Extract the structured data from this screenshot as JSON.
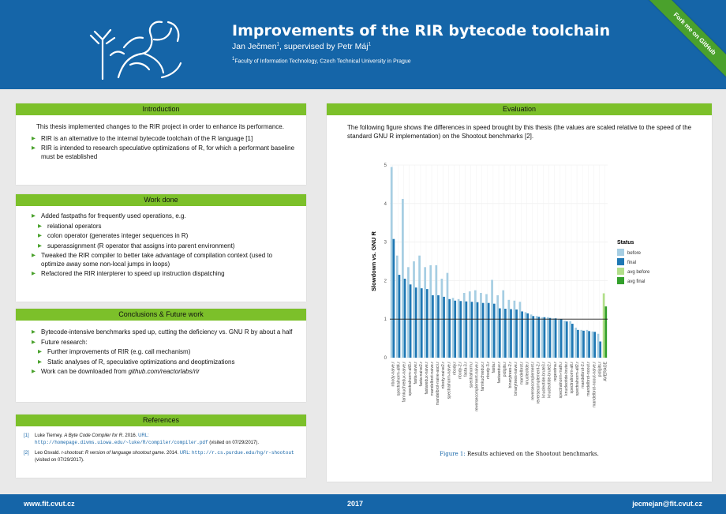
{
  "header": {
    "title": "Improvements of the RIR bytecode toolchain",
    "authors": "Jan Ječmen",
    "supervisor": ", supervised by Petr Máj",
    "sup1": "1",
    "sup2": "1",
    "affiliation_sup": "1",
    "affiliation": "Faculty of Information Technology, Czech Technical University in Prague",
    "ribbon": "Fork me on GitHub"
  },
  "intro": {
    "title": "Introduction",
    "lead": "This thesis implemented changes to the RIR project in order to enhance its performance.",
    "items": [
      "RIR is an alternative to the internal bytecode toolchain of the R language [1]",
      "RIR is intended to research speculative optimizations of R, for which a performant baseline must be established"
    ]
  },
  "work": {
    "title": "Work done",
    "item1": "Added fastpaths for frequently used operations, e.g.",
    "sub": [
      "relational operators",
      "colon operator (generates integer sequences in R)",
      "superassignment (R operator that assigns into parent environment)"
    ],
    "item2": "Tweaked the RIR compiler to better take advantage of compilation context (used to optimize away some non-local jumps in loops)",
    "item3": "Refactored the RIR interpterer to speed up instruction dispatching"
  },
  "conclusions": {
    "title": "Conclusions & Future work",
    "item1": "Bytecode-intensive benchmarks sped up, cutting the deficiency vs. GNU R by about a half",
    "item2": "Future research:",
    "sub": [
      "Further improvements of RIR (e.g. call mechanism)",
      "Static analyses of R, speculative optimizations and deoptimizations"
    ],
    "item3_pre": "Work can be downloaded from ",
    "item3_link": "github.com/reactorlabs/rir"
  },
  "references": {
    "title": "References",
    "r1_num": "[1]",
    "r1_author": "Luke Tierney. ",
    "r1_title": "A Byte Code Compiler for R",
    "r1_rest": ". 2016. ",
    "r1_url_label": "URL: ",
    "r1_url": "http://homepage.divms.uiowa.edu/~luke/R/compiler/compiler.pdf",
    "r1_visited": " (visited on 07/29/2017).",
    "r2_num": "[2]",
    "r2_author": "Leo Osvald. ",
    "r2_title": "r-shootout: R version of language shootout game",
    "r2_rest": ". 2014. ",
    "r2_url_label": "URL: ",
    "r2_url": "http://r.cs.purdue.edu/hg/r-shootout",
    "r2_visited": " (visited on 07/29/2017)."
  },
  "evaluation": {
    "title": "Evaluation",
    "text": "The following figure shows the differences in speed brought by this thesis (the values are scaled relative to the speed of the standard GNU R implementation) on the Shootout benchmarks [2].",
    "caption_label": "Figure 1:",
    "caption": " Results achieved on the Shootout benchmarks."
  },
  "footer": {
    "left": "www.fit.cvut.cz",
    "center": "2017",
    "right": "jecmejan@fit.cvut.cz"
  },
  "colors": {
    "header": "#1565a8",
    "accent": "#7cc02a",
    "before": "#a6cee3",
    "final": "#1f78b4",
    "avg_before": "#b2df8a",
    "avg_final": "#33a02c"
  },
  "chart_data": {
    "type": "bar",
    "ylabel": "Slowdown vs. GNU R",
    "ylim": [
      0,
      5
    ],
    "yticks": [
      0,
      1,
      2,
      3,
      4,
      5
    ],
    "reference_line": 1,
    "legend_title": "Status",
    "legend_position": "right",
    "legend": [
      "before",
      "final",
      "avg before",
      "avg final"
    ],
    "categories": [
      "nbody-naive.r",
      "spectralnorm-alt4.r",
      "fannkuchredux-naive.r",
      "spectralnorm-alt3.r",
      "fasta-naive.r",
      "fasta-naive2.r",
      "fastaredux-naive.r",
      "mandelbrot-naive.r",
      "mandelbrot-naive-ascii.r",
      "nbody-naive2.r",
      "spectralnorm-naive.r",
      "nbody.r",
      "nbody-2.r",
      "fasta-3.r",
      "spectralnorm.r",
      "reversecomplement-naive.r",
      "fannkuchredux.r",
      "nbody-3.r",
      "fasta.r",
      "fastaredux.r",
      "pidigits.r",
      "binarytrees-2.r",
      "binarytrees-naive.r",
      "mandelbrot.r",
      "knucleotide.r",
      "reversecomplement.r",
      "reversecomplement-2.r",
      "knucleotide-brute3.r",
      "knucleotide-brute2.r",
      "regexdna.r",
      "spectralnorm-math.r",
      "knucleotide-brute.r",
      "spectralnorm-alt.r",
      "spectralnorm-alt2.r",
      "mandelbrot-2.r",
      "mandelbrot-noout.r",
      "mandelbrot-noout-naive.r",
      "pidigits.r",
      "AVERAGE"
    ],
    "series": [
      {
        "name": "before",
        "values": [
          4.95,
          2.65,
          4.12,
          2.35,
          2.5,
          2.65,
          2.35,
          2.4,
          2.4,
          2.05,
          2.2,
          1.55,
          1.52,
          1.68,
          1.72,
          1.75,
          1.68,
          1.65,
          2.02,
          1.62,
          1.75,
          1.5,
          1.48,
          1.45,
          1.18,
          1.12,
          1.08,
          1.05,
          1.05,
          1.02,
          1.0,
          0.96,
          0.95,
          0.78,
          0.72,
          0.72,
          0.68,
          0.62,
          0.0
        ]
      },
      {
        "name": "final",
        "values": [
          3.08,
          2.15,
          2.05,
          1.9,
          1.82,
          1.8,
          1.78,
          1.62,
          1.62,
          1.58,
          1.52,
          1.48,
          1.47,
          1.46,
          1.45,
          1.44,
          1.42,
          1.42,
          1.4,
          1.28,
          1.27,
          1.26,
          1.25,
          1.2,
          1.15,
          1.08,
          1.06,
          1.05,
          1.03,
          1.02,
          1.0,
          0.94,
          0.88,
          0.72,
          0.7,
          0.69,
          0.67,
          0.42,
          0.0
        ]
      },
      {
        "name": "avg before",
        "values": [
          0,
          0,
          0,
          0,
          0,
          0,
          0,
          0,
          0,
          0,
          0,
          0,
          0,
          0,
          0,
          0,
          0,
          0,
          0,
          0,
          0,
          0,
          0,
          0,
          0,
          0,
          0,
          0,
          0,
          0,
          0,
          0,
          0,
          0,
          0,
          0,
          0,
          0,
          1.67
        ]
      },
      {
        "name": "avg final",
        "values": [
          0,
          0,
          0,
          0,
          0,
          0,
          0,
          0,
          0,
          0,
          0,
          0,
          0,
          0,
          0,
          0,
          0,
          0,
          0,
          0,
          0,
          0,
          0,
          0,
          0,
          0,
          0,
          0,
          0,
          0,
          0,
          0,
          0,
          0,
          0,
          0,
          0,
          0,
          1.33
        ]
      }
    ]
  }
}
